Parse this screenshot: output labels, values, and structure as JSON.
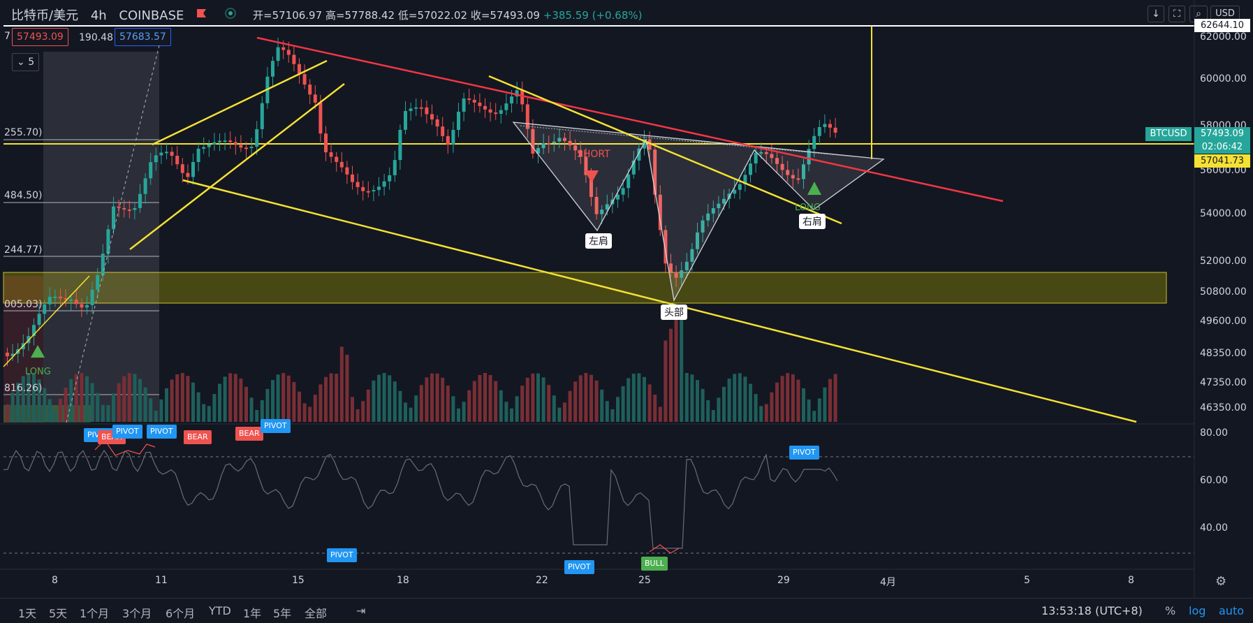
{
  "header": {
    "symbol": "比特币/美元",
    "interval": "4h",
    "exchange": "COINBASE",
    "open_label": "开=57106.97",
    "high_label": "高=57788.42",
    "low_label": "低=57022.02",
    "close_label": "收=57493.09",
    "change": "+385.59 (+0.68%)",
    "currency": "USD"
  },
  "price_boxes": {
    "indicator_num": "7",
    "bid": "57493.09",
    "spread": "190.48",
    "ask": "57683.57",
    "collapse": "5"
  },
  "price_axis": {
    "ticks": [
      "62000.00",
      "60000.00",
      "58000.00",
      "56000.00",
      "54000.00",
      "52000.00",
      "50800.00",
      "49600.00",
      "48350.00",
      "47350.00",
      "46350.00"
    ],
    "top_label": "62644.10",
    "symbol_tag": "BTCUSD",
    "current_price": "57493.09",
    "countdown": "02:06:42",
    "yellow_level": "57041.73"
  },
  "rsi_axis": {
    "ticks": [
      "80.00",
      "60.00",
      "40.00"
    ]
  },
  "fib_labels": [
    "255.70)",
    "484.50)",
    "244.77)",
    "005.03)",
    "816.26)"
  ],
  "time_axis": {
    "labels": [
      "8",
      "11",
      "15",
      "18",
      "22",
      "25",
      "29",
      "4月",
      "5",
      "8"
    ]
  },
  "annotations": {
    "left_shoulder": "左肩",
    "head": "头部",
    "right_shoulder": "右肩",
    "short": "SHORT",
    "long": "LONG",
    "long2": "LONG"
  },
  "signals": {
    "pivot": "PIVOT",
    "bear": "BEAR",
    "bull": "BULL"
  },
  "bottom": {
    "ranges": [
      "1天",
      "5天",
      "1个月",
      "3个月",
      "6个月",
      "YTD",
      "1年",
      "5年",
      "全部"
    ],
    "clock": "13:53:18 (UTC+8)",
    "pct": "%",
    "log": "log",
    "auto": "auto"
  },
  "colors": {
    "up": "#26a69a",
    "down": "#ef5350",
    "accent": "#2196f3",
    "yellow": "#f5e133",
    "trend_red": "#f23645"
  }
}
